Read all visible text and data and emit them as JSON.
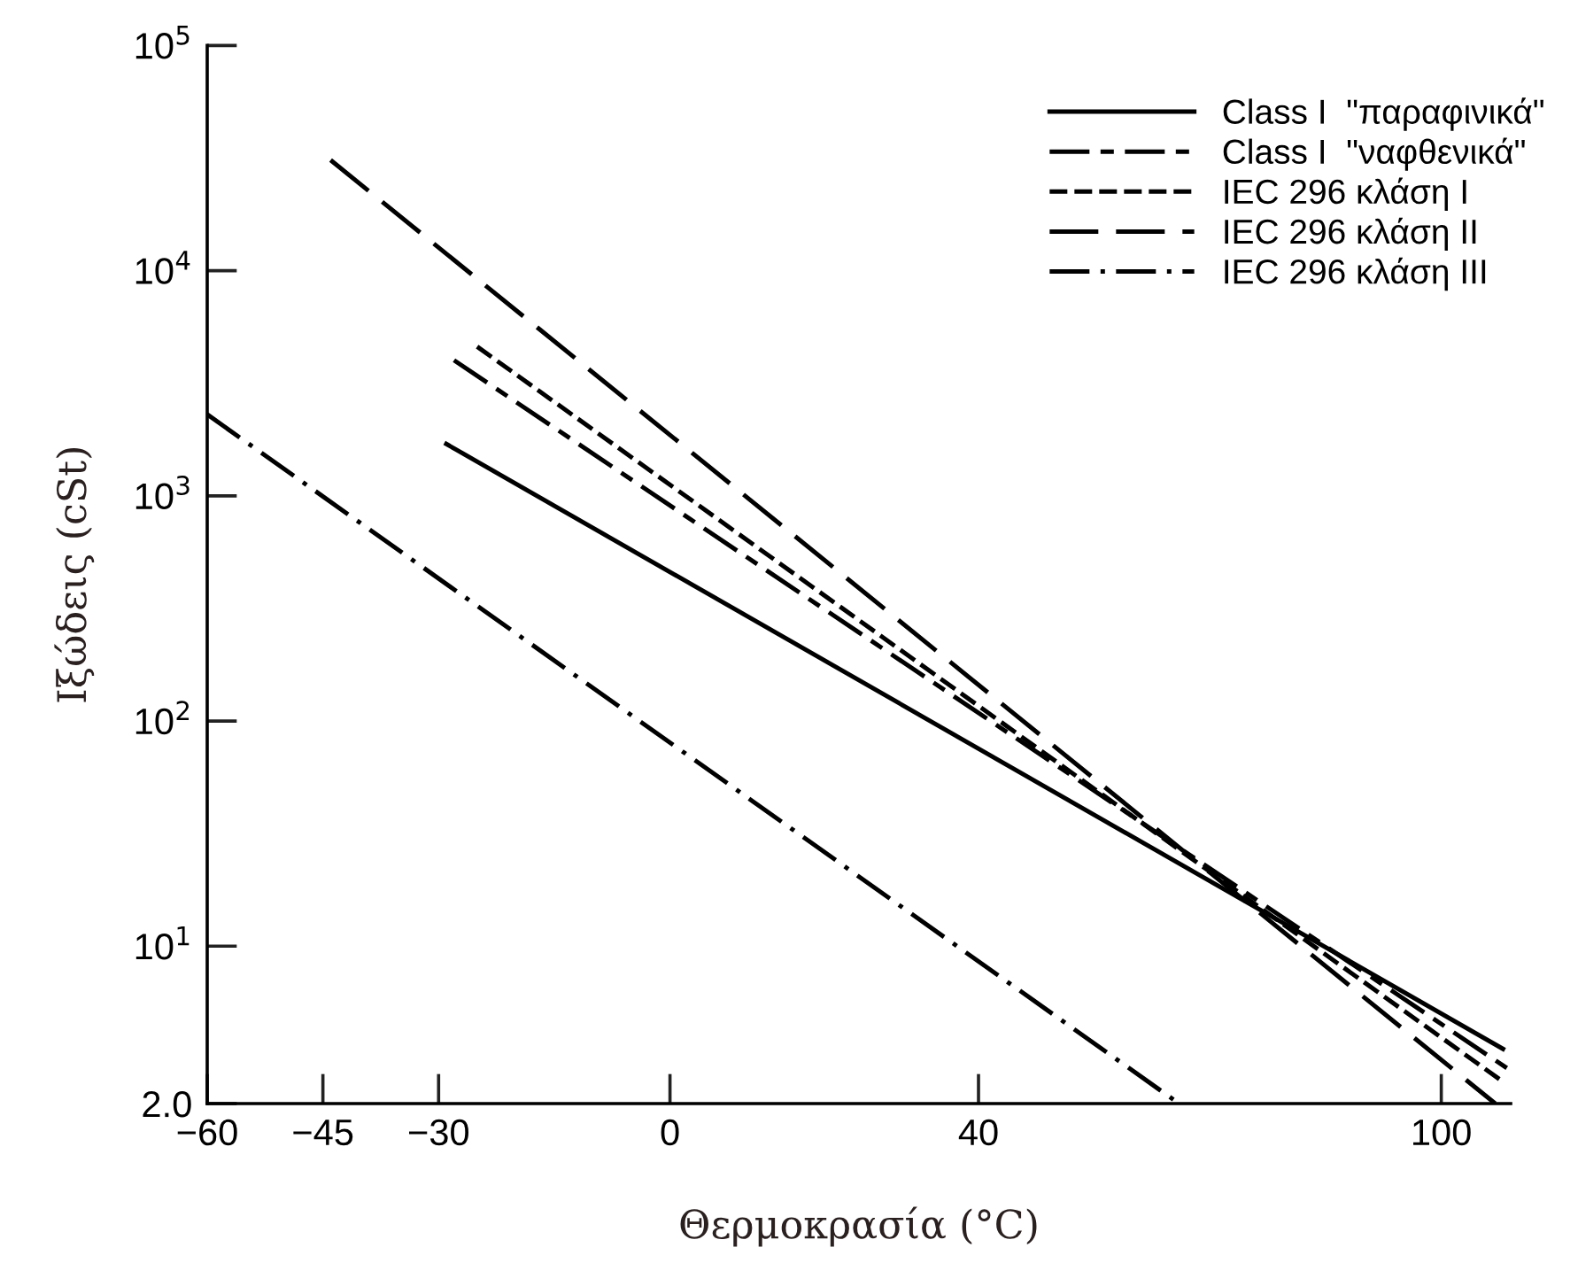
{
  "chart_data": {
    "type": "line",
    "xlabel": "Θερμοκρασία (°C)",
    "ylabel": "Ιξώδεις (cSt)",
    "xlim": [
      -60,
      109
    ],
    "ylim": [
      2,
      100000
    ],
    "xticks": [
      {
        "value": -60,
        "label": "−60"
      },
      {
        "value": -45,
        "label": "−45"
      },
      {
        "value": -30,
        "label": "−30"
      },
      0,
      40,
      100
    ],
    "yticks": [
      {
        "value": 2,
        "label": "2.0"
      },
      {
        "value": 10,
        "label": "10$^{1}$"
      },
      {
        "value": 100,
        "label": "10$^{2}$"
      },
      {
        "value": 1000,
        "label": "10$^{3}$"
      },
      {
        "value": 10000,
        "label": "10$^{4}$"
      },
      {
        "value": 100000,
        "label": "10$^{5}$"
      }
    ],
    "legend": "top right",
    "grid": false,
    "log": "y",
    "series": [
      {
        "name": "Class I  \"παραφινικά\"",
        "color": "#000000",
        "line_style": "solid",
        "x": [
          -29,
          108
        ],
        "values": [
          1700,
          3.5
        ]
      },
      {
        "name": "Class I  \"ναφθενικά\"",
        "color": "#000000",
        "line_style": "dashdot",
        "x": [
          -28,
          109
        ],
        "values": [
          4000,
          2.8
        ]
      },
      {
        "name": "IEC 296 κλάση I",
        "color": "#000000",
        "line_style": "dashed",
        "x": [
          -25,
          108
        ],
        "values": [
          4600,
          2.5
        ]
      },
      {
        "name": "IEC 296 κλάση II",
        "color": "#000000",
        "line_style": "longdash",
        "x": [
          -44,
          107
        ],
        "values": [
          31000,
          2.0
        ]
      },
      {
        "name": "IEC 296 κλάση III",
        "color": "#000000",
        "line_style": "dashdotted",
        "x": [
          -60,
          66
        ],
        "values": [
          2300,
          2.0
        ]
      }
    ]
  }
}
